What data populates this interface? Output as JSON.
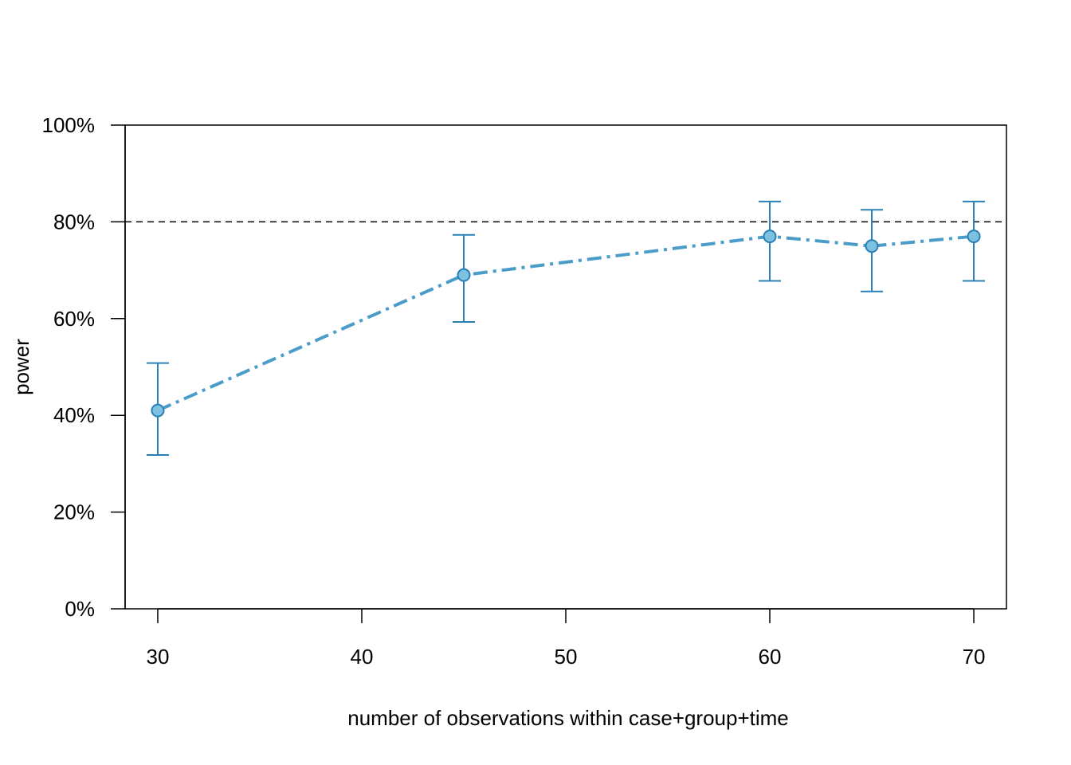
{
  "chart_data": {
    "type": "line",
    "title": "",
    "xlabel": "number of observations within case+group+time",
    "ylabel": "power",
    "x": [
      30,
      45,
      60,
      65,
      70
    ],
    "series": [
      {
        "name": "power",
        "values": [
          41,
          69,
          77,
          75,
          77
        ],
        "ci_lower": [
          31.8,
          59.3,
          67.8,
          65.6,
          67.8
        ],
        "ci_upper": [
          50.8,
          77.3,
          84.2,
          82.5,
          84.2
        ]
      }
    ],
    "xlim": [
      28.4,
      71.6
    ],
    "ylim": [
      0,
      100
    ],
    "xticks": [
      30,
      40,
      50,
      60,
      70
    ],
    "xtick_labels": [
      "30",
      "40",
      "50",
      "60",
      "70"
    ],
    "yticks": [
      0,
      20,
      40,
      60,
      80,
      100
    ],
    "ytick_labels": [
      "0%",
      "20%",
      "40%",
      "60%",
      "80%",
      "100%"
    ],
    "reference_line": 80,
    "grid": false,
    "colors": {
      "line": "#4A9CC9",
      "marker_fill": "#7CC0E2",
      "marker_edge": "#2A80B5",
      "errorbar": "#2A80B5",
      "reference": "#000000"
    }
  }
}
